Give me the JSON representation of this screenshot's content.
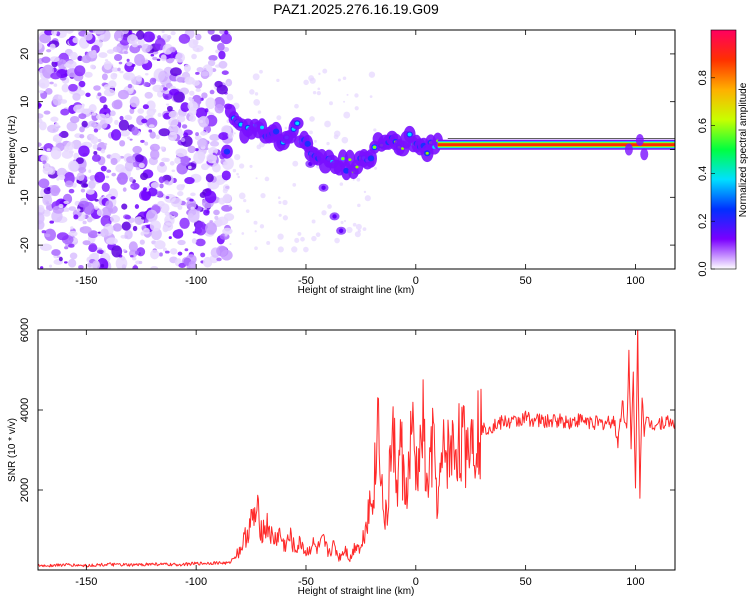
{
  "figure": {
    "title": "PAZ1.2025.276.16.19.G09"
  },
  "chart_data": [
    {
      "type": "heatmap",
      "xlabel": "Height of straight line (km)",
      "ylabel": "Frequency (Hz)",
      "xlim": [
        -172,
        118
      ],
      "ylim": [
        -25,
        25
      ],
      "x_ticks": [
        -150,
        -100,
        -50,
        0,
        50,
        100
      ],
      "x_tick_labels": [
        "-150",
        "-100",
        "-50",
        "0",
        "50",
        "100"
      ],
      "y_ticks": [
        -20,
        -10,
        0,
        10,
        20
      ],
      "y_tick_labels": [
        "-20",
        "-10",
        "0",
        "10",
        "20"
      ],
      "colorbar": {
        "label": "Normalized spectral amplitude",
        "range": [
          0,
          1
        ],
        "ticks": [
          0,
          0.2,
          0.4,
          0.6,
          0.8
        ],
        "tick_labels": [
          "0.0",
          "0.2",
          "0.4",
          "0.6",
          "0.8"
        ],
        "colormap": [
          "#ffffff",
          "#7a00ff",
          "#0030ff",
          "#00e0ff",
          "#00ff40",
          "#c8ff00",
          "#ffb000",
          "#ff3000",
          "#ff0060"
        ]
      },
      "features": {
        "noise_region_x": [
          -172,
          -85
        ],
        "ridge": [
          {
            "x": -85,
            "y": 9
          },
          {
            "x": -80,
            "y": 4
          },
          {
            "x": -75,
            "y": 3
          },
          {
            "x": -70,
            "y": 3
          },
          {
            "x": -62,
            "y": 2
          },
          {
            "x": -55,
            "y": 5
          },
          {
            "x": -50,
            "y": 2
          },
          {
            "x": -45,
            "y": -1
          },
          {
            "x": -40,
            "y": -2
          },
          {
            "x": -35,
            "y": -3
          },
          {
            "x": -30,
            "y": -4
          },
          {
            "x": -25,
            "y": -2
          },
          {
            "x": -20,
            "y": 0
          },
          {
            "x": -15,
            "y": 1
          },
          {
            "x": -10,
            "y": 1
          },
          {
            "x": -5,
            "y": 2
          },
          {
            "x": 0,
            "y": 2
          },
          {
            "x": 5,
            "y": 1
          },
          {
            "x": 10,
            "y": 1
          },
          {
            "x": 50,
            "y": 1
          },
          {
            "x": 100,
            "y": 1
          },
          {
            "x": 118,
            "y": 1
          }
        ],
        "branch": [
          {
            "x": -48,
            "y": -3
          },
          {
            "x": -42,
            "y": -8
          },
          {
            "x": -37,
            "y": -14
          },
          {
            "x": -34,
            "y": -17
          }
        ]
      }
    },
    {
      "type": "line",
      "xlabel": "Height of straight line (km)",
      "ylabel": "SNR (10 * v/v)",
      "xlim": [
        -172,
        118
      ],
      "ylim": [
        0,
        6000
      ],
      "x_ticks": [
        -150,
        -100,
        -50,
        0,
        50,
        100
      ],
      "x_tick_labels": [
        "-150",
        "-100",
        "-50",
        "0",
        "50",
        "100"
      ],
      "y_ticks": [
        2000,
        4000,
        6000
      ],
      "y_tick_labels": [
        "2000",
        "4000",
        "6000"
      ],
      "color": "#ff2a2a",
      "x": [
        -172,
        -160,
        -150,
        -140,
        -130,
        -120,
        -110,
        -100,
        -90,
        -85,
        -80,
        -77,
        -75,
        -72,
        -70,
        -67,
        -65,
        -62,
        -60,
        -57,
        -55,
        -52,
        -50,
        -47,
        -45,
        -42,
        -40,
        -37,
        -35,
        -32,
        -30,
        -27,
        -25,
        -22,
        -20,
        -19,
        -18,
        -17,
        -15,
        -13,
        -12,
        -10,
        -8,
        -7,
        -5,
        -3,
        -2,
        0,
        2,
        3,
        5,
        7,
        8,
        10,
        12,
        13,
        15,
        17,
        20,
        22,
        25,
        30,
        35,
        40,
        45,
        50,
        55,
        60,
        65,
        70,
        75,
        80,
        85,
        90,
        92,
        94,
        96,
        97,
        98,
        99,
        100,
        101,
        102,
        103,
        104,
        105,
        108,
        112,
        118
      ],
      "y": [
        100,
        130,
        110,
        140,
        120,
        150,
        130,
        160,
        180,
        170,
        500,
        900,
        1200,
        1400,
        1000,
        1100,
        700,
        900,
        600,
        800,
        500,
        700,
        400,
        650,
        500,
        700,
        450,
        600,
        300,
        550,
        250,
        700,
        500,
        1400,
        1800,
        2200,
        2800,
        4200,
        1500,
        1200,
        2600,
        3200,
        2000,
        3400,
        1800,
        2400,
        3600,
        2400,
        2700,
        3900,
        1900,
        2800,
        3100,
        1600,
        2600,
        3000,
        2900,
        3000,
        3200,
        3100,
        3400,
        3500,
        3600,
        3700,
        3700,
        3800,
        3750,
        3700,
        3750,
        3700,
        3750,
        3700,
        3650,
        3750,
        3200,
        4200,
        3500,
        5400,
        3000,
        4800,
        2000,
        6000,
        1800,
        4500,
        3500,
        3700,
        3650,
        3700,
        3700
      ]
    }
  ]
}
